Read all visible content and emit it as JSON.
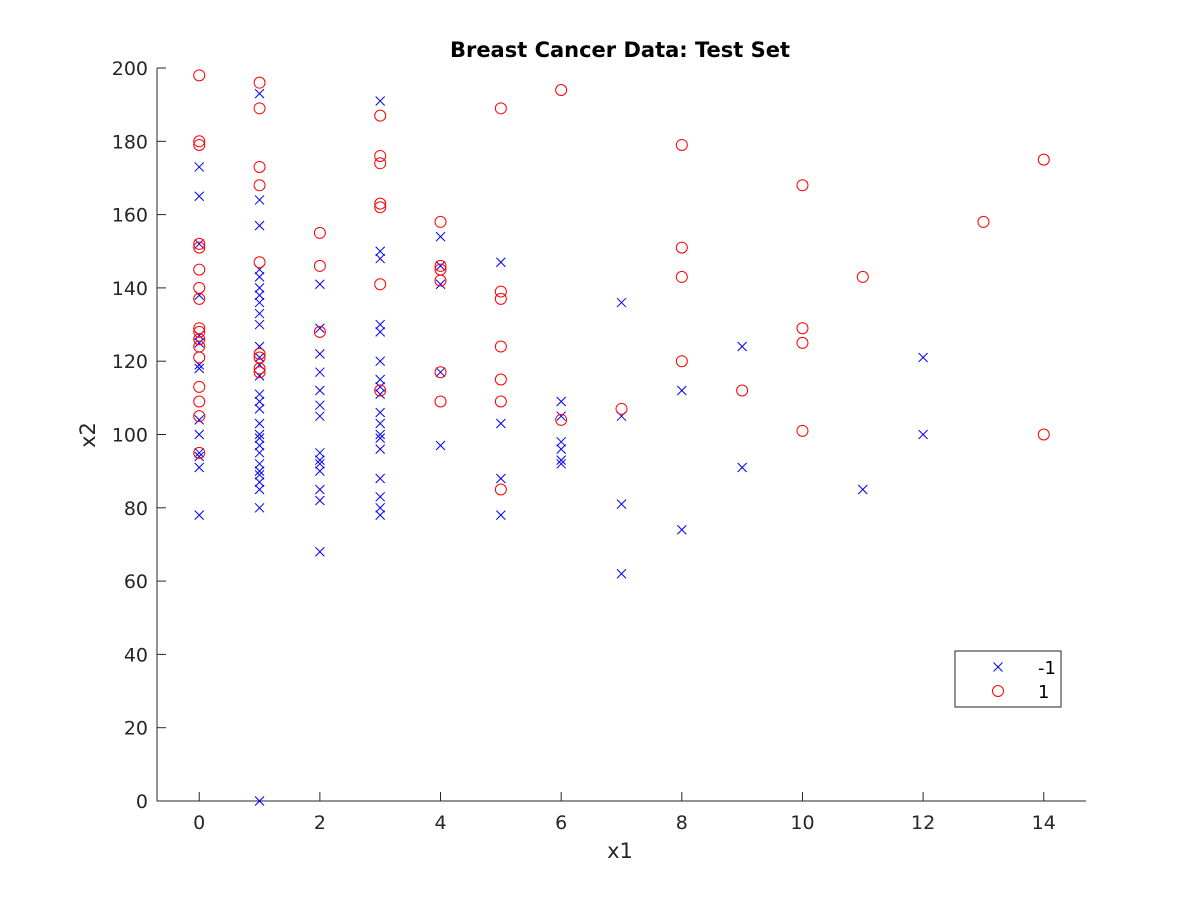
{
  "chart_data": {
    "type": "scatter",
    "title": "Breast Cancer Data: Test Set",
    "xlabel": "x1",
    "ylabel": "x2",
    "xlim": [
      -0.7,
      14.7
    ],
    "ylim": [
      0,
      200
    ],
    "xticks": [
      "0",
      "2",
      "4",
      "6",
      "8",
      "10",
      "12",
      "14"
    ],
    "yticks": [
      "0",
      "20",
      "40",
      "60",
      "80",
      "100",
      "120",
      "140",
      "160",
      "180",
      "200"
    ],
    "grid": false,
    "legend_position": "bottom-right",
    "series": [
      {
        "name": "-1",
        "marker": "x",
        "color": "#0000ff",
        "points": [
          [
            0,
            173
          ],
          [
            0,
            165
          ],
          [
            0,
            152
          ],
          [
            0,
            138
          ],
          [
            0,
            127
          ],
          [
            0,
            125
          ],
          [
            0,
            119
          ],
          [
            0,
            118
          ],
          [
            0,
            104
          ],
          [
            0,
            100
          ],
          [
            0,
            95
          ],
          [
            0,
            94
          ],
          [
            0,
            91
          ],
          [
            0,
            78
          ],
          [
            1,
            193
          ],
          [
            1,
            164
          ],
          [
            1,
            157
          ],
          [
            1,
            145
          ],
          [
            1,
            143
          ],
          [
            1,
            140
          ],
          [
            1,
            138
          ],
          [
            1,
            136
          ],
          [
            1,
            133
          ],
          [
            1,
            130
          ],
          [
            1,
            124
          ],
          [
            1,
            121
          ],
          [
            1,
            119
          ],
          [
            1,
            116
          ],
          [
            1,
            111
          ],
          [
            1,
            109
          ],
          [
            1,
            107
          ],
          [
            1,
            103
          ],
          [
            1,
            100
          ],
          [
            1,
            99
          ],
          [
            1,
            97
          ],
          [
            1,
            95
          ],
          [
            1,
            92
          ],
          [
            1,
            90
          ],
          [
            1,
            89
          ],
          [
            1,
            87
          ],
          [
            1,
            85
          ],
          [
            1,
            80
          ],
          [
            1,
            0
          ],
          [
            2,
            141
          ],
          [
            2,
            129
          ],
          [
            2,
            122
          ],
          [
            2,
            117
          ],
          [
            2,
            112
          ],
          [
            2,
            108
          ],
          [
            2,
            105
          ],
          [
            2,
            95
          ],
          [
            2,
            93
          ],
          [
            2,
            92
          ],
          [
            2,
            90
          ],
          [
            2,
            85
          ],
          [
            2,
            82
          ],
          [
            2,
            68
          ],
          [
            3,
            191
          ],
          [
            3,
            150
          ],
          [
            3,
            148
          ],
          [
            3,
            130
          ],
          [
            3,
            128
          ],
          [
            3,
            120
          ],
          [
            3,
            115
          ],
          [
            3,
            113
          ],
          [
            3,
            111
          ],
          [
            3,
            106
          ],
          [
            3,
            103
          ],
          [
            3,
            100
          ],
          [
            3,
            99
          ],
          [
            3,
            96
          ],
          [
            3,
            88
          ],
          [
            3,
            83
          ],
          [
            3,
            80
          ],
          [
            3,
            78
          ],
          [
            4,
            154
          ],
          [
            4,
            146
          ],
          [
            4,
            141
          ],
          [
            4,
            117
          ],
          [
            4,
            97
          ],
          [
            5,
            147
          ],
          [
            5,
            103
          ],
          [
            5,
            88
          ],
          [
            5,
            78
          ],
          [
            6,
            109
          ],
          [
            6,
            105
          ],
          [
            6,
            98
          ],
          [
            6,
            96
          ],
          [
            6,
            93
          ],
          [
            6,
            92
          ],
          [
            7,
            136
          ],
          [
            7,
            105
          ],
          [
            7,
            81
          ],
          [
            7,
            62
          ],
          [
            8,
            112
          ],
          [
            8,
            74
          ],
          [
            9,
            124
          ],
          [
            9,
            91
          ],
          [
            11,
            85
          ],
          [
            12,
            121
          ],
          [
            12,
            100
          ]
        ]
      },
      {
        "name": "1",
        "marker": "o",
        "color": "#ff0000",
        "points": [
          [
            0,
            198
          ],
          [
            0,
            180
          ],
          [
            0,
            179
          ],
          [
            0,
            152
          ],
          [
            0,
            151
          ],
          [
            0,
            145
          ],
          [
            0,
            140
          ],
          [
            0,
            137
          ],
          [
            0,
            129
          ],
          [
            0,
            128
          ],
          [
            0,
            126
          ],
          [
            0,
            124
          ],
          [
            0,
            121
          ],
          [
            0,
            113
          ],
          [
            0,
            109
          ],
          [
            0,
            105
          ],
          [
            0,
            95
          ],
          [
            1,
            196
          ],
          [
            1,
            189
          ],
          [
            1,
            173
          ],
          [
            1,
            168
          ],
          [
            1,
            147
          ],
          [
            1,
            122
          ],
          [
            1,
            121
          ],
          [
            1,
            118
          ],
          [
            1,
            117
          ],
          [
            2,
            155
          ],
          [
            2,
            146
          ],
          [
            2,
            128
          ],
          [
            3,
            187
          ],
          [
            3,
            176
          ],
          [
            3,
            174
          ],
          [
            3,
            163
          ],
          [
            3,
            162
          ],
          [
            3,
            141
          ],
          [
            3,
            112
          ],
          [
            4,
            158
          ],
          [
            4,
            146
          ],
          [
            4,
            145
          ],
          [
            4,
            142
          ],
          [
            4,
            117
          ],
          [
            4,
            109
          ],
          [
            5,
            189
          ],
          [
            5,
            139
          ],
          [
            5,
            137
          ],
          [
            5,
            124
          ],
          [
            5,
            115
          ],
          [
            5,
            109
          ],
          [
            5,
            85
          ],
          [
            6,
            194
          ],
          [
            6,
            104
          ],
          [
            7,
            107
          ],
          [
            8,
            179
          ],
          [
            8,
            151
          ],
          [
            8,
            143
          ],
          [
            8,
            120
          ],
          [
            9,
            112
          ],
          [
            10,
            168
          ],
          [
            10,
            129
          ],
          [
            10,
            125
          ],
          [
            10,
            101
          ],
          [
            11,
            143
          ],
          [
            13,
            158
          ],
          [
            14,
            175
          ],
          [
            14,
            100
          ]
        ]
      }
    ]
  }
}
